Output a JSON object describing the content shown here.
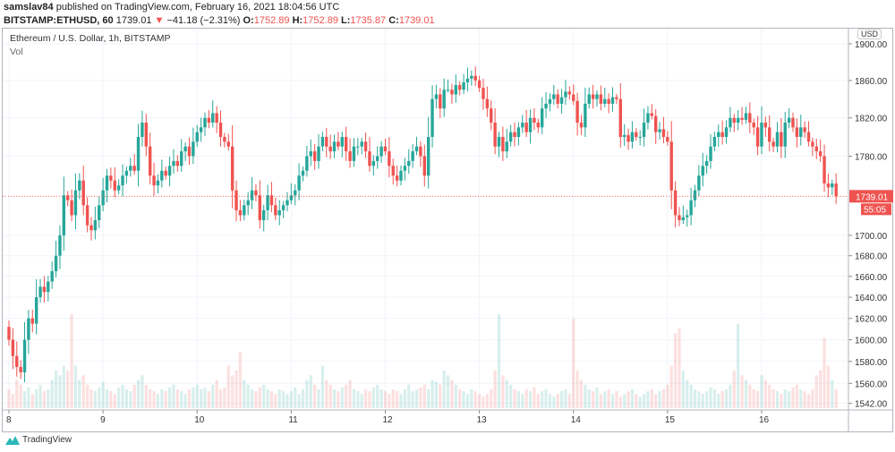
{
  "header": {
    "user": "samslav84",
    "published": "published on TradingView.com, February 16, 2021 18:04:56 UTC"
  },
  "ticker": {
    "symbol": "BITSTAMP:ETHUSD, 60",
    "last": "1739.01",
    "arrow": "▼",
    "change": "−41.18 (−2.31%)",
    "o_label": "O:",
    "o": "1752.89",
    "h_label": "H:",
    "h": "1752.89",
    "l_label": "L:",
    "l": "1735.87",
    "c_label": "C:",
    "c": "1739.01"
  },
  "chart": {
    "title": "Ethereum / U.S. Dollar, 1h, BITSTAMP",
    "vol_label": "Vol",
    "currency": "USD",
    "last_price_label": "1739.01",
    "countdown": "55:05"
  },
  "footer": {
    "brand": "TradingView"
  },
  "colors": {
    "up": "#26a69a",
    "down": "#ef5350",
    "grid": "#f0f3fa"
  },
  "chart_data": {
    "type": "candlestick",
    "scale": "log",
    "ylim": [
      1542,
      1900
    ],
    "y_ticks": [
      "1900.00",
      "1860.00",
      "1820.00",
      "1780.00",
      "1700.00",
      "1680.00",
      "1660.00",
      "1640.00",
      "1620.00",
      "1600.00",
      "1580.00",
      "1560.00",
      "1542.00"
    ],
    "x_ticks": [
      "8",
      "9",
      "10",
      "11",
      "12",
      "13",
      "14",
      "15",
      "16"
    ],
    "first_open": 1612,
    "closes": [
      1600,
      1585,
      1575,
      1570,
      1600,
      1620,
      1615,
      1640,
      1650,
      1645,
      1655,
      1665,
      1680,
      1700,
      1740,
      1735,
      1720,
      1745,
      1755,
      1730,
      1710,
      1705,
      1715,
      1730,
      1745,
      1760,
      1755,
      1745,
      1750,
      1760,
      1765,
      1770,
      1765,
      1800,
      1815,
      1790,
      1760,
      1750,
      1755,
      1765,
      1760,
      1770,
      1775,
      1770,
      1785,
      1790,
      1780,
      1795,
      1805,
      1810,
      1820,
      1815,
      1825,
      1815,
      1800,
      1795,
      1790,
      1745,
      1725,
      1720,
      1730,
      1735,
      1745,
      1740,
      1715,
      1725,
      1740,
      1730,
      1720,
      1725,
      1730,
      1735,
      1740,
      1745,
      1760,
      1765,
      1780,
      1785,
      1775,
      1790,
      1800,
      1790,
      1785,
      1795,
      1790,
      1800,
      1785,
      1775,
      1790,
      1790,
      1795,
      1785,
      1770,
      1775,
      1780,
      1790,
      1785,
      1770,
      1760,
      1755,
      1765,
      1770,
      1775,
      1785,
      1790,
      1780,
      1760,
      1800,
      1840,
      1845,
      1830,
      1850,
      1850,
      1845,
      1855,
      1850,
      1858,
      1862,
      1865,
      1860,
      1852,
      1840,
      1830,
      1815,
      1790,
      1800,
      1785,
      1795,
      1805,
      1800,
      1810,
      1815,
      1805,
      1820,
      1815,
      1810,
      1830,
      1835,
      1840,
      1845,
      1835,
      1842,
      1848,
      1845,
      1838,
      1815,
      1810,
      1835,
      1845,
      1840,
      1845,
      1835,
      1840,
      1835,
      1842,
      1840,
      1800,
      1802,
      1795,
      1805,
      1800,
      1800,
      1815,
      1825,
      1822,
      1805,
      1808,
      1800,
      1795,
      1745,
      1720,
      1715,
      1718,
      1720,
      1735,
      1745,
      1760,
      1770,
      1775,
      1790,
      1800,
      1805,
      1800,
      1810,
      1820,
      1815,
      1820,
      1818,
      1825,
      1815,
      1810,
      1790,
      1815,
      1810,
      1795,
      1790,
      1805,
      1790,
      1815,
      1820,
      1810,
      1800,
      1810,
      1805,
      1795,
      1790,
      1785,
      1780,
      1752,
      1748,
      1752,
      1739
    ],
    "volume": [
      20,
      15,
      30,
      25,
      18,
      22,
      15,
      20,
      25,
      18,
      20,
      30,
      40,
      35,
      45,
      40,
      100,
      45,
      30,
      35,
      25,
      20,
      18,
      22,
      28,
      20,
      18,
      15,
      22,
      25,
      20,
      18,
      25,
      30,
      35,
      25,
      20,
      18,
      15,
      20,
      18,
      22,
      25,
      20,
      18,
      15,
      20,
      22,
      25,
      20,
      22,
      18,
      25,
      30,
      20,
      22,
      45,
      35,
      40,
      60,
      30,
      25,
      20,
      18,
      22,
      25,
      20,
      18,
      15,
      20,
      18,
      15,
      18,
      22,
      15,
      20,
      30,
      35,
      25,
      20,
      45,
      30,
      25,
      20,
      18,
      22,
      25,
      30,
      20,
      18,
      15,
      20,
      18,
      22,
      25,
      20,
      18,
      15,
      20,
      18,
      15,
      20,
      25,
      18,
      20,
      22,
      25,
      20,
      30,
      28,
      25,
      40,
      35,
      30,
      25,
      20,
      18,
      15,
      20,
      18,
      15,
      12,
      15,
      20,
      40,
      100,
      35,
      30,
      25,
      20,
      18,
      15,
      20,
      18,
      22,
      15,
      18,
      20,
      15,
      12,
      15,
      18,
      20,
      15,
      95,
      40,
      30,
      25,
      20,
      18,
      22,
      15,
      18,
      20,
      15,
      18,
      12,
      15,
      18,
      20,
      15,
      12,
      15,
      18,
      20,
      15,
      18,
      20,
      25,
      45,
      80,
      85,
      40,
      30,
      25,
      20,
      18,
      15,
      18,
      22,
      20,
      15,
      18,
      20,
      25,
      40,
      90,
      35,
      30,
      25,
      20,
      18,
      35,
      30,
      25,
      20,
      18,
      15,
      20,
      18,
      22,
      25,
      20,
      18,
      15,
      20,
      35,
      40,
      75,
      45,
      30,
      20
    ]
  }
}
